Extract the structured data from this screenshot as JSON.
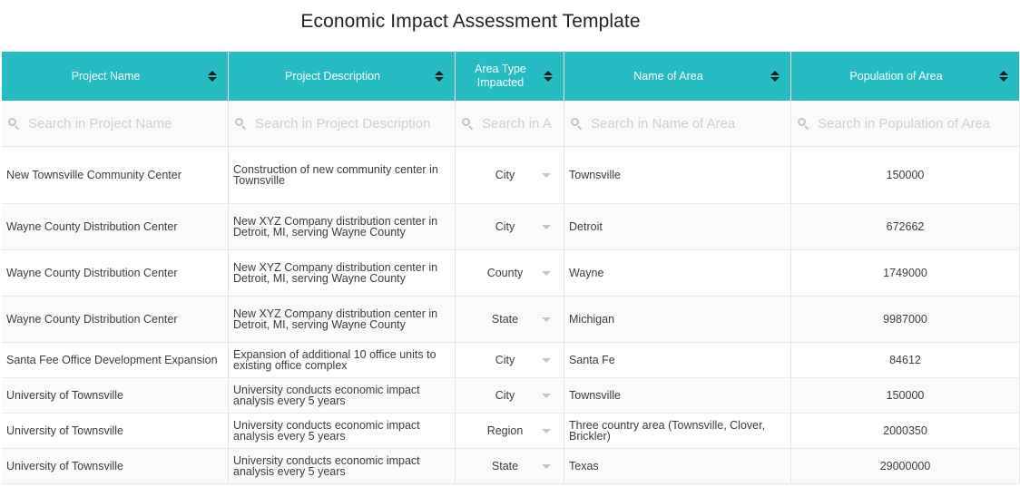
{
  "title": "Economic Impact Assessment Template",
  "columns": [
    {
      "label": "Project Name",
      "placeholder": "Search in Project Name"
    },
    {
      "label": "Project Description",
      "placeholder": "Search in Project Description"
    },
    {
      "label": "Area Type Impacted",
      "placeholder": "Search in A"
    },
    {
      "label": "Name of Area",
      "placeholder": "Search in Name of Area"
    },
    {
      "label": "Population of Area",
      "placeholder": "Search in Population of Area"
    }
  ],
  "rows": [
    {
      "name": "New Townsville Community Center",
      "description": "Construction of new community center in Townsville",
      "area_type": "City",
      "area_name": "Townsville",
      "population": "150000"
    },
    {
      "name": "Wayne County Distribution Center",
      "description": "New XYZ Company distribution center in Detroit, MI, serving Wayne County",
      "area_type": "City",
      "area_name": "Detroit",
      "population": "672662"
    },
    {
      "name": "Wayne County Distribution Center",
      "description": "New XYZ Company distribution center in Detroit, MI, serving Wayne County",
      "area_type": "County",
      "area_name": "Wayne",
      "population": "1749000"
    },
    {
      "name": "Wayne County Distribution Center",
      "description": "New XYZ Company distribution center in Detroit, MI, serving Wayne County",
      "area_type": "State",
      "area_name": "Michigan",
      "population": "9987000"
    },
    {
      "name": "Santa Fee Office Development Expansion",
      "description": "Expansion of additional 10 office units to existing office complex",
      "area_type": "City",
      "area_name": "Santa Fe",
      "population": "84612"
    },
    {
      "name": "University of Townsville",
      "description": "University conducts economic impact analysis every 5 years",
      "area_type": "City",
      "area_name": "Townsville",
      "population": "150000"
    },
    {
      "name": "University of Townsville",
      "description": "University conducts economic impact analysis every 5 years",
      "area_type": "Region",
      "area_name": "Three country area (Townsville, Clover, Brickler)",
      "population": "2000350"
    },
    {
      "name": "University of Townsville",
      "description": "University conducts economic impact analysis every 5 years",
      "area_type": "State",
      "area_name": "Texas",
      "population": "29000000"
    }
  ]
}
